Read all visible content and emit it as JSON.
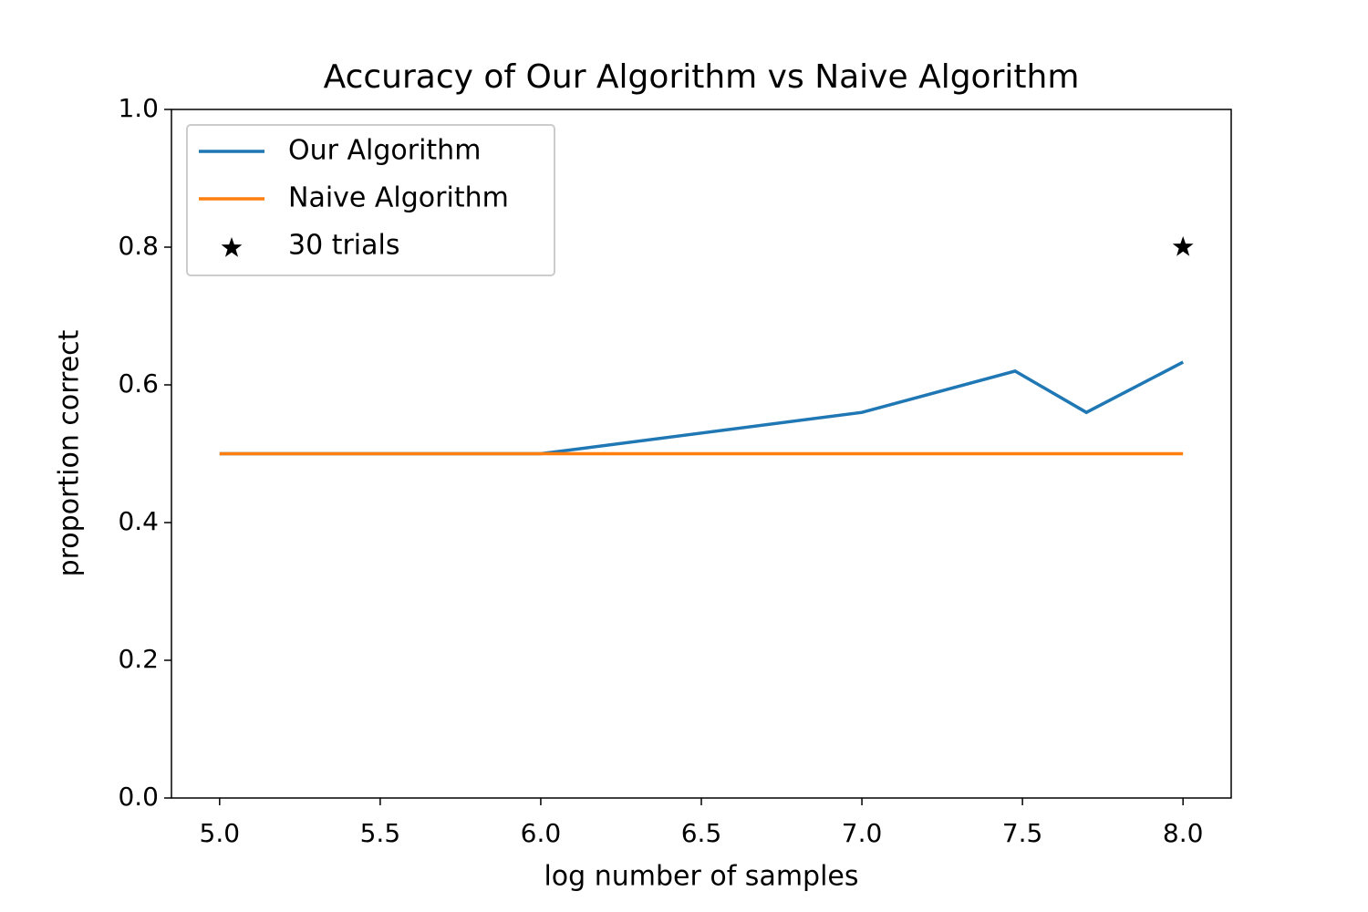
{
  "chart_data": {
    "type": "line",
    "title": "Accuracy of Our Algorithm vs Naive Algorithm",
    "x_label": "log number of samples",
    "y_label": "proportion correct",
    "xlim": [
      4.85,
      8.15
    ],
    "ylim": [
      0,
      1
    ],
    "xticks": [
      {
        "value": 5,
        "label": "5.0"
      },
      5.5,
      {
        "value": 6,
        "label": "6.0"
      },
      6.5,
      {
        "value": 7,
        "label": "7.0"
      },
      7.5,
      {
        "value": 8,
        "label": "8.0"
      }
    ],
    "yticks": [
      {
        "value": 0,
        "label": "0.0"
      },
      0.2,
      0.4,
      0.6,
      0.8,
      {
        "value": 1,
        "label": "1.0"
      }
    ],
    "grid": false,
    "legend_position": "upper-left",
    "series": [
      {
        "name": "Our Algorithm",
        "color": "#1f77b4",
        "kind": "line",
        "x": [
          5,
          6,
          7,
          7.477,
          7.699,
          8
        ],
        "values": [
          0.5,
          0.5,
          0.56,
          0.62,
          0.56,
          0.633
        ]
      },
      {
        "name": "Naive Algorithm",
        "color": "#ff7f0e",
        "kind": "line",
        "x": [
          5,
          6,
          7,
          7.477,
          7.699,
          8
        ],
        "values": [
          0.5,
          0.5,
          0.5,
          0.5,
          0.5,
          0.5
        ]
      },
      {
        "name": "30 trials",
        "color": "#000000",
        "kind": "star",
        "x": [
          8
        ],
        "values": [
          0.8
        ]
      }
    ]
  }
}
